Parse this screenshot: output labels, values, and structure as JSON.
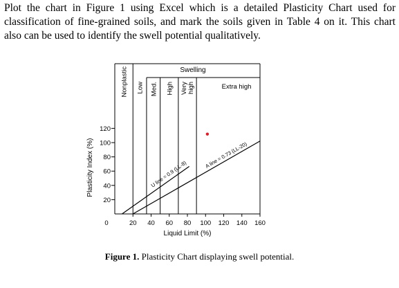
{
  "paragraph": {
    "line1": "Plot the chart in Figure 1 using Excel which is a detailed Plasticity Chart used for",
    "line2": "classification of fine-grained soils, and mark the soils given in Table 4 on it. This chart",
    "line3": "also can be used to identify the swell potential qualitatively."
  },
  "chart_data": {
    "type": "line",
    "xlabel": "Liquid Limit (%)",
    "ylabel": "Plasticity Index (%)",
    "xlim": [
      0,
      160
    ],
    "ylim": [
      0,
      130
    ],
    "x_ticks": [
      "0",
      "20",
      "40",
      "60",
      "80",
      "100",
      "120",
      "140",
      "160"
    ],
    "y_ticks": [
      "20",
      "40",
      "60",
      "80",
      "100",
      "120"
    ],
    "lines": [
      {
        "label": "U line = 0.9 (LL-8)",
        "x": [
          8,
          82
        ],
        "y": [
          0,
          66.6
        ]
      },
      {
        "label": "A line = 0.73 (LL-20)",
        "x": [
          20,
          160
        ],
        "y": [
          0,
          102.2
        ]
      }
    ],
    "swell_header": "Swelling",
    "zones": [
      "Nonplastic",
      "Low",
      "Med.",
      "High",
      "Very high",
      "Extra high"
    ],
    "zone_boundaries_x": [
      20,
      35,
      50,
      70,
      90
    ],
    "marked_point": {
      "x": 102,
      "y": 112,
      "color": "#d9202a"
    }
  },
  "caption": {
    "label": "Figure 1.",
    "text": " Plasticity Chart displaying swell potential."
  }
}
